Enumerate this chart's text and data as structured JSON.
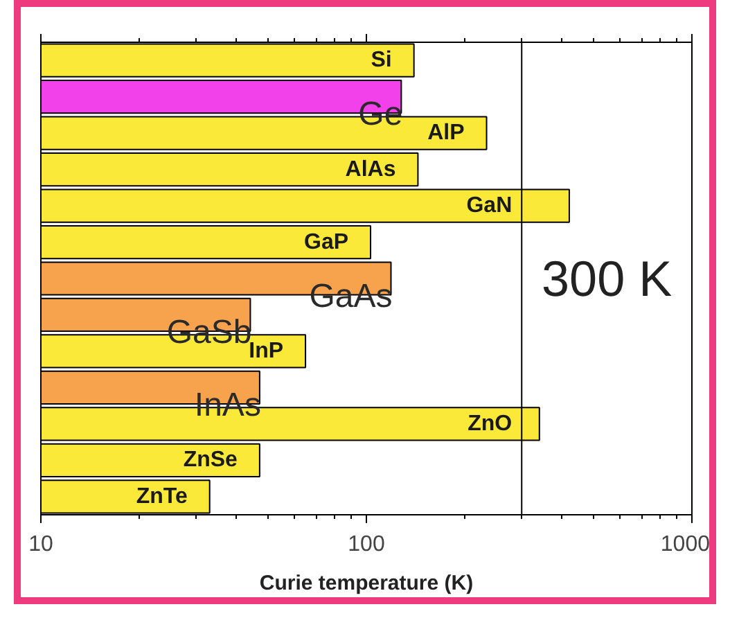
{
  "chart_data": {
    "type": "bar",
    "orientation": "horizontal",
    "xlabel": "Curie temperature (K)",
    "categories": [
      "Si",
      "Ge",
      "AlP",
      "AlAs",
      "GaN",
      "GaP",
      "GaAs",
      "GaSb",
      "InP",
      "InAs",
      "ZnO",
      "ZnSe",
      "ZnTe"
    ],
    "values": [
      140,
      128,
      234,
      144,
      420,
      103,
      119,
      44,
      65,
      47,
      340,
      47,
      33
    ],
    "colors": [
      "#fbe93a",
      "#f240ea",
      "#fbe93a",
      "#fbe93a",
      "#fbe93a",
      "#fbe93a",
      "#f7a24c",
      "#f7a24c",
      "#fbe93a",
      "#f7a24c",
      "#fbe93a",
      "#fbe93a",
      "#fbe93a"
    ],
    "log": "x",
    "xlim": [
      10,
      1000
    ],
    "xticks": [
      10,
      {
        "value": 20,
        "label": null
      },
      {
        "value": 30,
        "label": null
      },
      {
        "value": 40,
        "label": null
      },
      {
        "value": 50,
        "label": null
      },
      {
        "value": 60,
        "label": null
      },
      {
        "value": 70,
        "label": null
      },
      {
        "value": 80,
        "label": null
      },
      {
        "value": 90,
        "label": null
      },
      100,
      {
        "value": 200,
        "label": null
      },
      {
        "value": 300,
        "label": null
      },
      {
        "value": 400,
        "label": null
      },
      {
        "value": 500,
        "label": null
      },
      {
        "value": 600,
        "label": null
      },
      {
        "value": 700,
        "label": null
      },
      {
        "value": 800,
        "label": null
      },
      {
        "value": 900,
        "label": null
      },
      1000
    ],
    "ref_lines": [
      {
        "axis": "x",
        "value": 300,
        "label": "300 K"
      }
    ],
    "tick_labels": "x"
  }
}
